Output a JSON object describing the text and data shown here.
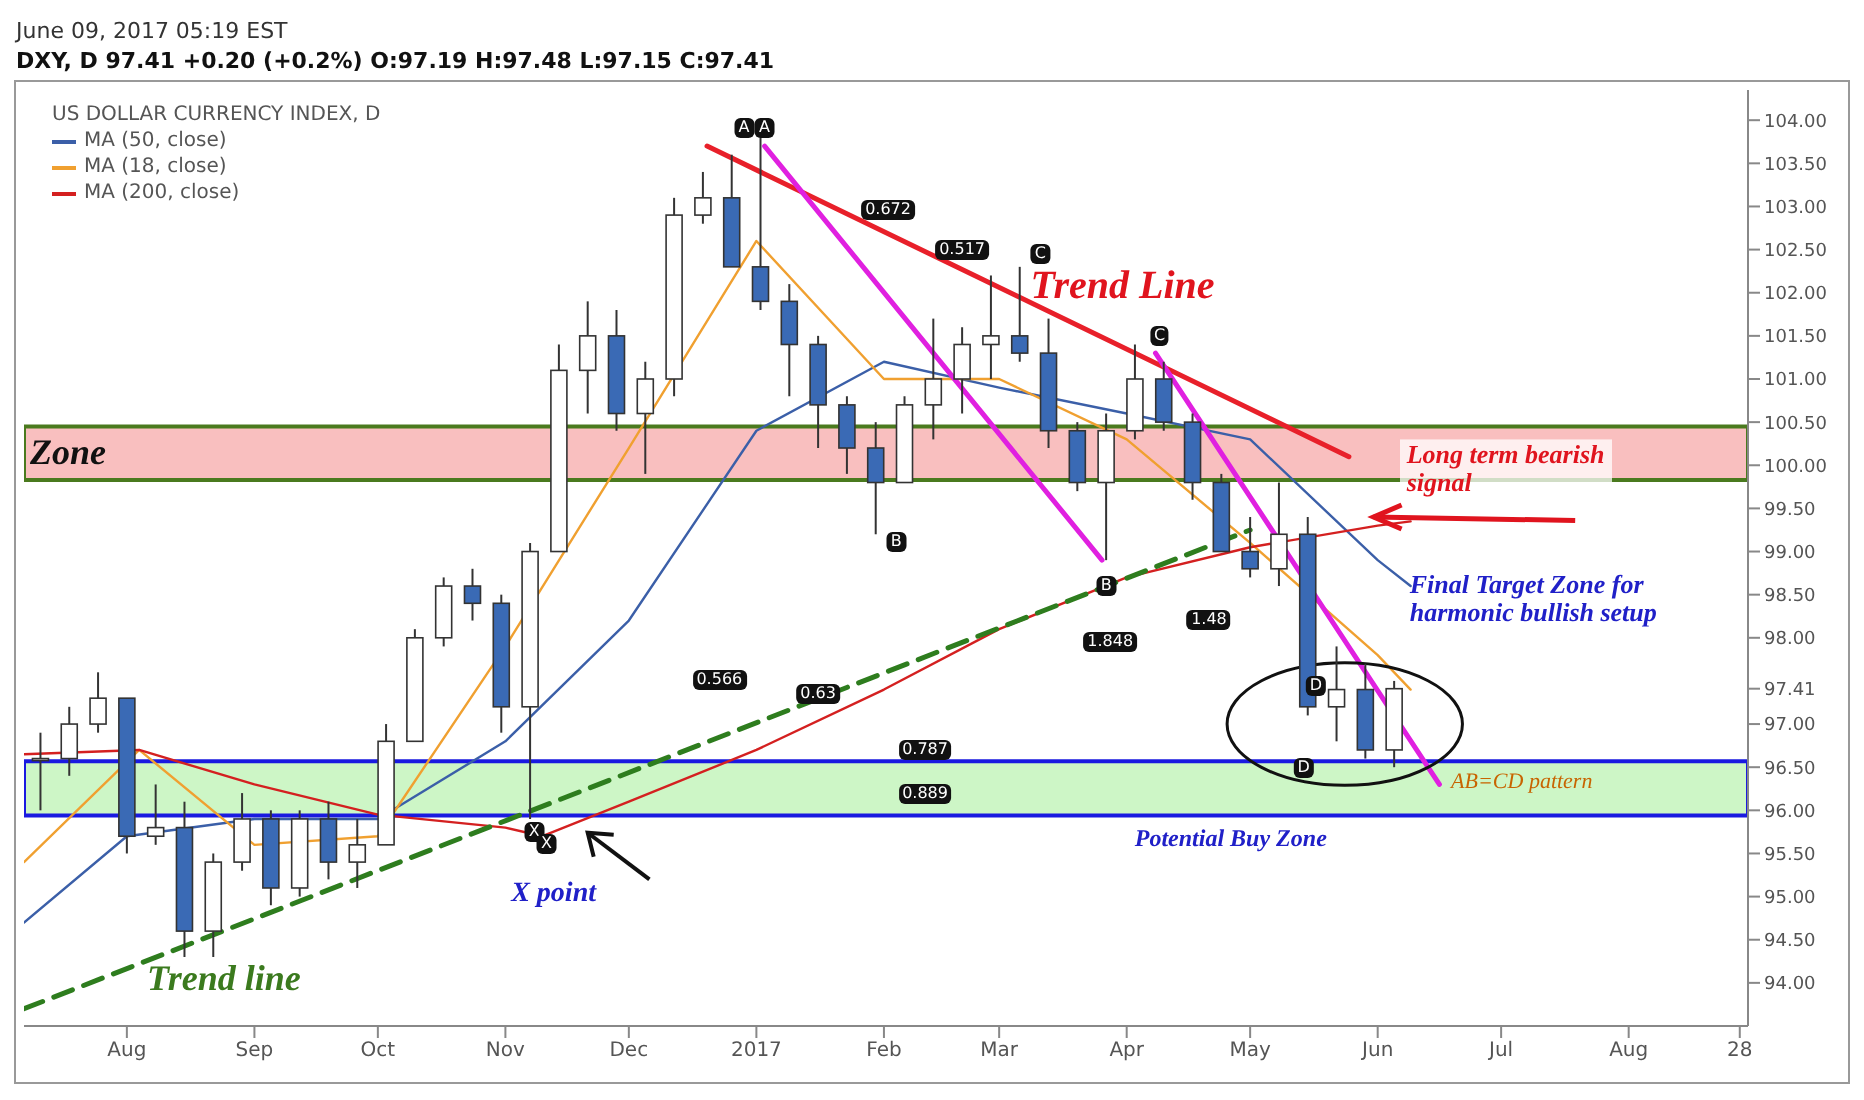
{
  "chart_data": {
    "type": "candlestick",
    "title": "DXY, D 97.41 +0.20 (+0.2%) O:97.19 H:97.48 L:97.15 C:97.41",
    "subtitle": "June 09, 2017 05:19 EST",
    "legend_title": "US DOLLAR CURRENCY INDEX, D",
    "x": [
      "2016-07-11",
      "2016-07-18",
      "2016-07-25",
      "2016-08-01",
      "2016-08-08",
      "2016-08-15",
      "2016-08-22",
      "2016-08-29",
      "2016-09-05",
      "2016-09-12",
      "2016-09-19",
      "2016-09-26",
      "2016-10-03",
      "2016-10-10",
      "2016-10-17",
      "2016-10-24",
      "2016-10-31",
      "2016-11-07",
      "2016-11-14",
      "2016-11-21",
      "2016-11-28",
      "2016-12-05",
      "2016-12-12",
      "2016-12-19",
      "2016-12-26",
      "2017-01-02",
      "2017-01-09",
      "2017-01-16",
      "2017-01-23",
      "2017-01-30",
      "2017-02-06",
      "2017-02-13",
      "2017-02-20",
      "2017-02-27",
      "2017-03-06",
      "2017-03-13",
      "2017-03-20",
      "2017-03-27",
      "2017-04-03",
      "2017-04-10",
      "2017-04-17",
      "2017-04-24",
      "2017-05-01",
      "2017-05-08",
      "2017-05-15",
      "2017-05-22",
      "2017-05-29",
      "2017-06-05"
    ],
    "ohlc": [
      [
        96.6,
        96.9,
        96.0,
        96.6
      ],
      [
        96.6,
        97.2,
        96.4,
        97.0
      ],
      [
        97.0,
        97.6,
        96.9,
        97.3
      ],
      [
        97.3,
        97.3,
        95.5,
        95.7
      ],
      [
        95.7,
        96.3,
        95.6,
        95.8
      ],
      [
        95.8,
        96.1,
        94.3,
        94.6
      ],
      [
        94.6,
        95.5,
        94.3,
        95.4
      ],
      [
        95.4,
        96.2,
        95.3,
        95.9
      ],
      [
        95.9,
        96.0,
        94.9,
        95.1
      ],
      [
        95.1,
        96.0,
        95.0,
        95.9
      ],
      [
        95.9,
        96.1,
        95.2,
        95.4
      ],
      [
        95.4,
        95.9,
        95.1,
        95.6
      ],
      [
        95.6,
        97.0,
        95.6,
        96.8
      ],
      [
        96.8,
        98.1,
        96.8,
        98.0
      ],
      [
        98.0,
        98.7,
        97.9,
        98.6
      ],
      [
        98.6,
        98.8,
        98.2,
        98.4
      ],
      [
        98.4,
        98.5,
        96.9,
        97.2
      ],
      [
        97.2,
        99.1,
        95.9,
        99.0
      ],
      [
        99.0,
        101.4,
        99.0,
        101.1
      ],
      [
        101.1,
        101.9,
        100.6,
        101.5
      ],
      [
        101.5,
        101.8,
        100.4,
        100.6
      ],
      [
        100.6,
        101.2,
        99.9,
        101.0
      ],
      [
        101.0,
        103.1,
        100.8,
        102.9
      ],
      [
        102.9,
        103.4,
        102.8,
        103.1
      ],
      [
        103.1,
        103.6,
        102.3,
        102.3
      ],
      [
        102.3,
        103.8,
        101.8,
        101.9
      ],
      [
        101.9,
        102.1,
        100.8,
        101.4
      ],
      [
        101.4,
        101.5,
        100.2,
        100.7
      ],
      [
        100.7,
        100.8,
        99.9,
        100.2
      ],
      [
        100.2,
        100.5,
        99.2,
        99.8
      ],
      [
        99.8,
        100.8,
        99.8,
        100.7
      ],
      [
        100.7,
        101.7,
        100.3,
        101.0
      ],
      [
        101.0,
        101.6,
        100.6,
        101.4
      ],
      [
        101.4,
        102.2,
        101.0,
        101.5
      ],
      [
        101.5,
        102.3,
        101.2,
        101.3
      ],
      [
        101.3,
        101.7,
        100.2,
        100.4
      ],
      [
        100.4,
        100.5,
        99.7,
        99.8
      ],
      [
        99.8,
        100.6,
        98.9,
        100.4
      ],
      [
        100.4,
        101.4,
        100.3,
        101.0
      ],
      [
        101.0,
        101.2,
        100.4,
        100.5
      ],
      [
        100.5,
        100.6,
        99.6,
        99.8
      ],
      [
        99.8,
        99.9,
        99.0,
        99.0
      ],
      [
        99.0,
        99.4,
        98.7,
        98.8
      ],
      [
        98.8,
        99.8,
        98.6,
        99.2
      ],
      [
        99.2,
        99.4,
        97.1,
        97.2
      ],
      [
        97.2,
        97.9,
        96.8,
        97.4
      ],
      [
        97.4,
        97.7,
        96.6,
        96.7
      ],
      [
        96.7,
        97.5,
        96.5,
        97.41
      ]
    ],
    "series": [
      {
        "type": "line",
        "name": "MA (50, close)",
        "color": "#3b5fa8",
        "x": [
          "2016-07-07",
          "2016-08-01",
          "2016-09-01",
          "2016-10-01",
          "2016-11-01",
          "2016-12-01",
          "2017-01-01",
          "2017-02-01",
          "2017-03-01",
          "2017-04-01",
          "2017-05-01",
          "2017-06-01",
          "2017-06-09"
        ],
        "values": [
          94.7,
          95.7,
          95.9,
          95.9,
          96.8,
          98.2,
          100.4,
          101.2,
          100.9,
          100.6,
          100.3,
          98.9,
          98.6
        ]
      },
      {
        "type": "line",
        "name": "MA (18, close)",
        "color": "#f0a030",
        "x": [
          "2016-07-07",
          "2016-08-04",
          "2016-09-01",
          "2016-10-01",
          "2016-11-01",
          "2016-12-01",
          "2017-01-01",
          "2017-02-01",
          "2017-03-01",
          "2017-04-01",
          "2017-05-01",
          "2017-06-01",
          "2017-06-09"
        ],
        "values": [
          95.4,
          96.7,
          95.6,
          95.7,
          97.9,
          100.2,
          102.6,
          101.0,
          101.0,
          100.3,
          99.1,
          97.8,
          97.4
        ]
      },
      {
        "type": "line",
        "name": "MA (200, close)",
        "color": "#d42020",
        "x": [
          "2016-07-07",
          "2016-08-04",
          "2016-09-01",
          "2016-10-01",
          "2016-11-01",
          "2016-11-10",
          "2016-12-01",
          "2017-01-01",
          "2017-02-01",
          "2017-03-01",
          "2017-04-01",
          "2017-05-01",
          "2017-06-01",
          "2017-06-09"
        ],
        "values": [
          96.65,
          96.7,
          96.3,
          95.95,
          95.8,
          95.7,
          96.1,
          96.7,
          97.4,
          98.1,
          98.7,
          99.05,
          99.3,
          99.35
        ]
      },
      {
        "type": "line",
        "color": "#e8202a",
        "x": [
          "2016-12-20",
          "2017-05-25"
        ],
        "values": [
          103.7,
          100.1
        ]
      },
      {
        "type": "line",
        "color": "#2e7d1e",
        "line_style": "dashed",
        "x": [
          "2016-07-07",
          "2017-05-01"
        ],
        "values": [
          93.7,
          99.25
        ]
      },
      {
        "type": "line",
        "color": "#e020e0",
        "x": [
          "2017-01-03",
          "2017-03-26"
        ],
        "values": [
          103.7,
          98.9
        ]
      },
      {
        "type": "line",
        "color": "#e020e0",
        "x": [
          "2017-04-08",
          "2017-06-16"
        ],
        "values": [
          101.3,
          96.3
        ]
      }
    ],
    "xlim": [
      "2016-07-07",
      "2017-08-30"
    ],
    "xticks": [
      {
        "value": "2016-08",
        "label": "Aug"
      },
      {
        "value": "2016-09",
        "label": "Sep"
      },
      {
        "value": "2016-10",
        "label": "Oct"
      },
      {
        "value": "2016-11",
        "label": "Nov"
      },
      {
        "value": "2016-12",
        "label": "Dec"
      },
      {
        "value": "2017-01",
        "label": "2017"
      },
      {
        "value": "2017-02",
        "label": "Feb"
      },
      {
        "value": "2017-03",
        "label": "Mar"
      },
      {
        "value": "2017-04",
        "label": "Apr"
      },
      {
        "value": "2017-05",
        "label": "May"
      },
      {
        "value": "2017-06",
        "label": "Jun"
      },
      {
        "value": "2017-07",
        "label": "Jul"
      },
      {
        "value": "2017-08",
        "label": "Aug"
      },
      {
        "value": "2017-08-28",
        "label": "28"
      }
    ],
    "ylim": [
      93.5,
      104.35
    ],
    "yticks": [
      {
        "value": 94,
        "label": "94.00"
      },
      {
        "value": 94.5,
        "label": "94.50"
      },
      {
        "value": 95,
        "label": "95.00"
      },
      {
        "value": 95.5,
        "label": "95.50"
      },
      {
        "value": 96,
        "label": "96.00"
      },
      {
        "value": 96.5,
        "label": "96.50"
      },
      {
        "value": 97,
        "label": "97.00"
      },
      97.41,
      {
        "value": 98,
        "label": "98.00"
      },
      {
        "value": 98.5,
        "label": "98.50"
      },
      {
        "value": 99,
        "label": "99.00"
      },
      {
        "value": 99.5,
        "label": "99.50"
      },
      {
        "value": 100,
        "label": "100.00"
      },
      {
        "value": 100.5,
        "label": "100.50"
      },
      {
        "value": 101,
        "label": "101.00"
      },
      {
        "value": 101.5,
        "label": "101.50"
      },
      {
        "value": 102,
        "label": "102.00"
      },
      {
        "value": 102.5,
        "label": "102.50"
      },
      {
        "value": 103,
        "label": "103.00"
      },
      {
        "value": 103.5,
        "label": "103.50"
      },
      {
        "value": 104,
        "label": "104.00"
      }
    ],
    "bands": [
      {
        "axis": "y",
        "from": 99.83,
        "to": 100.45,
        "label": "Zone",
        "color": "#f8b4b4"
      },
      {
        "axis": "y",
        "from": 95.94,
        "to": 96.57,
        "label": "Potential Buy Zone",
        "color": "#c4f4bc"
      }
    ],
    "annotations": [
      "Trend Line",
      "Long term bearish signal",
      "Final Target Zone for harmonic bullish setup",
      "AB=CD pattern",
      "X point",
      "Trend line",
      {
        "text": "A",
        "x": "2016-12-29",
        "y": 103.9
      },
      {
        "text": "A",
        "x": "2017-01-03",
        "y": 103.9
      },
      {
        "text": "C",
        "x": "2017-03-11",
        "y": 102.45
      },
      {
        "text": "C",
        "x": "2017-04-09",
        "y": 101.5
      },
      {
        "text": "B",
        "x": "2017-02-04",
        "y": 99.1
      },
      {
        "text": "B",
        "x": "2017-03-27",
        "y": 98.6
      },
      {
        "text": "D",
        "x": "2017-05-17",
        "y": 97.45
      },
      {
        "text": "D",
        "x": "2017-05-14",
        "y": 96.5
      },
      {
        "text": "X",
        "x": "2016-11-08",
        "y": 95.76
      },
      {
        "text": "X",
        "x": "2016-11-11",
        "y": 95.6
      },
      {
        "text": "0.672",
        "x": "2017-02-02",
        "y": 102.95
      },
      {
        "text": "0.517",
        "x": "2017-02-20",
        "y": 102.5
      },
      {
        "text": "0.566",
        "x": "2016-12-23",
        "y": 97.5
      },
      {
        "text": "0.63",
        "x": "2017-01-16",
        "y": 97.35
      },
      {
        "text": "0.787",
        "x": "2017-02-11",
        "y": 96.7
      },
      {
        "text": "0.889",
        "x": "2017-02-11",
        "y": 96.2
      },
      {
        "text": "1.848",
        "x": "2017-03-28",
        "y": 97.95
      },
      {
        "text": "1.48",
        "x": "2017-04-21",
        "y": 98.2
      }
    ],
    "legend": "top left"
  }
}
